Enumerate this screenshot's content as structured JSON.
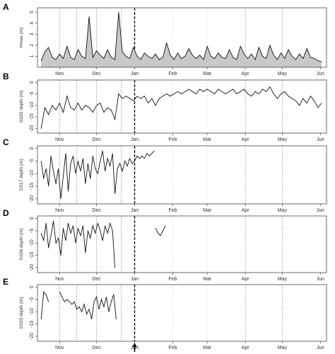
{
  "chart_data": [
    {
      "type": "area",
      "panel": "A",
      "ylabel": "Hmax (m)",
      "ylim": [
        0,
        5.4
      ],
      "yticks": [
        1,
        2,
        3,
        4,
        5
      ],
      "x_months": [
        "Nov",
        "Dec",
        "Jan",
        "Feb",
        "Mar",
        "Apr",
        "May",
        "Jun"
      ],
      "xlim_days": [
        -18,
        217
      ],
      "series": [
        {
          "x": [
            -15,
            -12,
            -9,
            -6,
            -3,
            0,
            3,
            6,
            9,
            12,
            15,
            18,
            21,
            24,
            27,
            30,
            33,
            36,
            39,
            42,
            45,
            48,
            51,
            54,
            57,
            60,
            63,
            66,
            69,
            72,
            75,
            78,
            81,
            84,
            87,
            90,
            93,
            96,
            99,
            102,
            105,
            108,
            111,
            114,
            117,
            120,
            123,
            126,
            129,
            132,
            135,
            138,
            141,
            144,
            147,
            150,
            153,
            156,
            159,
            162,
            165,
            168,
            171,
            174,
            177,
            180,
            183,
            186,
            189,
            192,
            195,
            198,
            201,
            204,
            207,
            210,
            213
          ],
          "y": [
            0.6,
            1.4,
            1.8,
            0.9,
            0.7,
            1.2,
            0.8,
            1.9,
            0.9,
            0.7,
            1.6,
            1.0,
            0.8,
            4.6,
            0.9,
            1.5,
            1.1,
            0.8,
            1.6,
            0.9,
            0.7,
            5.0,
            1.4,
            1.0,
            0.8,
            1.8,
            1.0,
            0.7,
            1.3,
            1.0,
            0.8,
            1.2,
            0.7,
            0.9,
            2.2,
            1.1,
            0.7,
            1.3,
            0.8,
            1.0,
            1.7,
            1.1,
            0.8,
            1.1,
            0.7,
            1.9,
            1.0,
            0.8,
            1.3,
            0.9,
            0.8,
            1.6,
            0.9,
            0.7,
            1.9,
            1.2,
            0.8,
            1.2,
            0.7,
            1.8,
            1.0,
            0.8,
            2.0,
            1.1,
            0.7,
            1.3,
            0.8,
            1.6,
            1.0,
            0.7,
            1.2,
            0.8,
            1.7,
            0.9,
            0.8,
            0.6,
            0.5
          ]
        }
      ]
    },
    {
      "type": "line",
      "panel": "B",
      "ylabel": "SS01 depth (m)",
      "ylim": [
        -22,
        1
      ],
      "yticks": [
        -20,
        -15,
        -10,
        -5,
        0
      ],
      "x_months": [
        "Nov",
        "Dec",
        "Jan",
        "Feb",
        "Mar",
        "Apr",
        "May",
        "Jun"
      ],
      "xlim_days": [
        -18,
        217
      ],
      "series": [
        {
          "x": [
            -15,
            -12,
            -9,
            -6,
            -3,
            0,
            3,
            6,
            9,
            12,
            15,
            18,
            21,
            24,
            27,
            30,
            33,
            36,
            39,
            42,
            45,
            48,
            51,
            54,
            57,
            60,
            63,
            66,
            69,
            72,
            75,
            78,
            81,
            84,
            87,
            90,
            93,
            96,
            99,
            102,
            105,
            108,
            111,
            114,
            117,
            120,
            123,
            126,
            129,
            132,
            135,
            138,
            141,
            144,
            147,
            150,
            153,
            156,
            159,
            162,
            165,
            168,
            171,
            174,
            177,
            180,
            183,
            186,
            189,
            192,
            195,
            198,
            201,
            204,
            207,
            210,
            213
          ],
          "y": [
            -20,
            -11,
            -14,
            -10,
            -12,
            -9,
            -13,
            -6,
            -11,
            -12,
            -9,
            -12,
            -10,
            -11,
            -13,
            -10,
            -9,
            -13,
            -11,
            -12,
            -16,
            -5,
            -7,
            -6,
            -7,
            -8,
            -6,
            -7,
            -6,
            -9,
            -7,
            -10,
            -7,
            -6,
            -5,
            -6,
            -5,
            -4,
            -5,
            -4,
            -3,
            -4,
            -5,
            -3,
            -4,
            -3,
            -4,
            -5,
            -3,
            -4,
            -5,
            -4,
            -3,
            -5,
            -4,
            -3,
            -5,
            -6,
            -4,
            -5,
            -3,
            -4,
            -2,
            -5,
            -7,
            -5,
            -4,
            -6,
            -7,
            -8,
            -10,
            -7,
            -9,
            -6,
            -8,
            -11,
            -9
          ]
        }
      ]
    },
    {
      "type": "line",
      "panel": "C",
      "ylabel": "SS17 depth (m)",
      "ylim": [
        -22,
        1
      ],
      "yticks": [
        -20,
        -15,
        -10,
        -5,
        0
      ],
      "x_months": [
        "Nov",
        "Dec",
        "Jan",
        "Feb",
        "Mar",
        "Apr",
        "May",
        "Jun"
      ],
      "xlim_days": [
        -18,
        217
      ],
      "series": [
        {
          "x": [
            -15,
            -13,
            -11,
            -9,
            -7,
            -5,
            -3,
            -1,
            1,
            3,
            5,
            7,
            9,
            11,
            13,
            15,
            17,
            19,
            21,
            23,
            25,
            27,
            29,
            31,
            33,
            35,
            37,
            39,
            41,
            43,
            45,
            47,
            49,
            51,
            53,
            55,
            57,
            59,
            61,
            63,
            65,
            67,
            69,
            71,
            73,
            75,
            77
          ],
          "y": [
            -5,
            -12,
            -8,
            -15,
            -3,
            -9,
            -14,
            -8,
            -20,
            -11,
            -2,
            -17,
            -6,
            -3,
            -10,
            -5,
            -9,
            -4,
            -14,
            -6,
            -12,
            -3,
            -8,
            -10,
            -5,
            -1,
            -9,
            -4,
            -7,
            -2,
            -18,
            -8,
            -6,
            -9,
            -5,
            -7,
            -4,
            -6,
            -5,
            -3,
            -4,
            -3,
            -4,
            -2,
            -3,
            -2,
            -1
          ]
        }
      ]
    },
    {
      "type": "line",
      "panel": "D",
      "ylabel": "SS06 depth (m)",
      "ylim": [
        -22,
        1
      ],
      "yticks": [
        -20,
        -15,
        -10,
        -5,
        0
      ],
      "x_months": [
        "Nov",
        "Dec",
        "Jan",
        "Feb",
        "Mar",
        "Apr",
        "May",
        "Jun"
      ],
      "xlim_days": [
        -18,
        217
      ],
      "series": [
        {
          "x": [
            -15,
            -13,
            -11,
            -9,
            -7,
            -5,
            -3,
            -1,
            1,
            3,
            5,
            7,
            9,
            11,
            13,
            15,
            17,
            19,
            21,
            23,
            25,
            27,
            29,
            31,
            33,
            35,
            37,
            39,
            41,
            43,
            45
          ],
          "y": [
            -6,
            -9,
            -2,
            -12,
            -7,
            -1,
            -10,
            -8,
            -15,
            -4,
            -9,
            -2,
            -6,
            -3,
            -10,
            -4,
            -7,
            -3,
            -14,
            -5,
            -8,
            -3,
            -6,
            -2,
            -5,
            -9,
            -3,
            -6,
            -2,
            -5,
            -20
          ]
        },
        {
          "x": [
            78,
            80,
            82,
            84,
            86
          ],
          "y": [
            -4,
            -6,
            -7,
            -5,
            -3
          ]
        }
      ]
    },
    {
      "type": "line",
      "panel": "E",
      "ylabel": "SS03 depth (m)",
      "ylim": [
        -22,
        1
      ],
      "yticks": [
        -20,
        -15,
        -10,
        -5,
        0
      ],
      "x_months": [
        "Nov",
        "Dec",
        "Jan",
        "Feb",
        "Mar",
        "Apr",
        "May",
        "Jun"
      ],
      "xlim_days": [
        -18,
        217
      ],
      "series": [
        {
          "x": [
            -15,
            -13,
            -11,
            -9
          ],
          "y": [
            -13,
            -2,
            -3,
            -6
          ]
        },
        {
          "x": [
            0,
            2,
            4,
            6,
            8,
            10,
            12,
            14,
            16,
            18,
            20,
            22,
            24,
            26,
            28,
            30,
            32,
            34,
            36,
            38,
            40,
            42,
            44,
            46
          ],
          "y": [
            -2,
            -4,
            -6,
            -5,
            -6,
            -7,
            -6,
            -9,
            -8,
            -10,
            -7,
            -11,
            -9,
            -13,
            -6,
            -4,
            -9,
            -5,
            -8,
            -4,
            -10,
            -6,
            -3,
            -13
          ]
        }
      ]
    }
  ]
}
